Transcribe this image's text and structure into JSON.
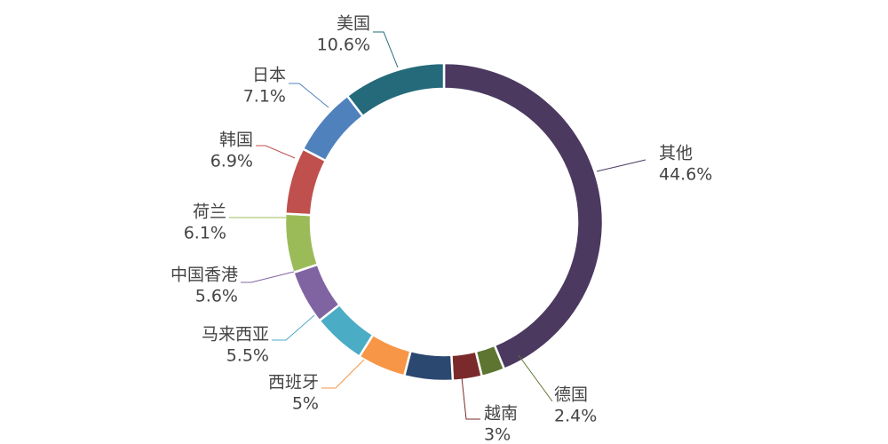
{
  "chart_data": {
    "type": "pie",
    "variant": "donut",
    "title": "",
    "legend": "none",
    "slices": [
      {
        "label": "其他",
        "value": 44.6,
        "value_label": "44.6%",
        "color": "#4b3960"
      },
      {
        "label": "德国",
        "value": 2.4,
        "value_label": "2.4%",
        "color": "#5d7530"
      },
      {
        "label": "越南",
        "value": 3.0,
        "value_label": "3%",
        "color": "#7a2a2a"
      },
      {
        "label": "",
        "value": 5.0,
        "value_label": "",
        "color": "#2b4870"
      },
      {
        "label": "西班牙",
        "value": 5.0,
        "value_label": "5%",
        "color": "#f79646"
      },
      {
        "label": "马来西亚",
        "value": 5.5,
        "value_label": "5.5%",
        "color": "#4bacc6"
      },
      {
        "label": "中国香港",
        "value": 5.6,
        "value_label": "5.6%",
        "color": "#8064a2"
      },
      {
        "label": "荷兰",
        "value": 6.1,
        "value_label": "6.1%",
        "color": "#9bbb59"
      },
      {
        "label": "韩国",
        "value": 6.9,
        "value_label": "6.9%",
        "color": "#c0504d"
      },
      {
        "label": "日本",
        "value": 7.1,
        "value_label": "7.1%",
        "color": "#4f81bd"
      },
      {
        "label": "美国",
        "value": 10.6,
        "value_label": "10.6%",
        "color": "#246a7a"
      }
    ]
  }
}
